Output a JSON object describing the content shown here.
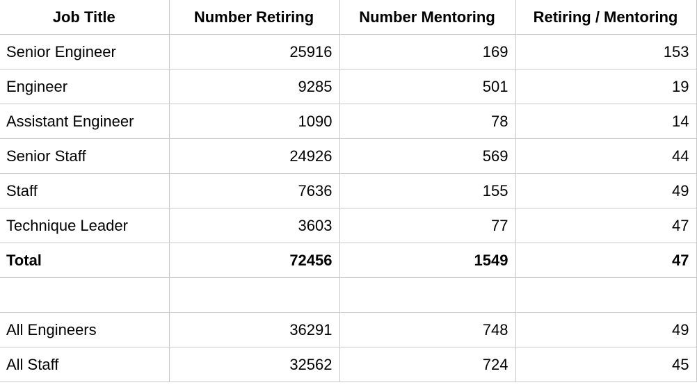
{
  "table": {
    "headers": [
      "Job Title",
      "Number Retiring",
      "Number Mentoring",
      "Retiring / Mentoring"
    ],
    "rows": [
      {
        "title": "Senior Engineer",
        "retiring": "25916",
        "mentoring": "169",
        "ratio": "153"
      },
      {
        "title": "Engineer",
        "retiring": "9285",
        "mentoring": "501",
        "ratio": "19"
      },
      {
        "title": "Assistant Engineer",
        "retiring": "1090",
        "mentoring": "78",
        "ratio": "14"
      },
      {
        "title": "Senior Staff",
        "retiring": "24926",
        "mentoring": "569",
        "ratio": "44"
      },
      {
        "title": "Staff",
        "retiring": "7636",
        "mentoring": "155",
        "ratio": "49"
      },
      {
        "title": "Technique Leader",
        "retiring": "3603",
        "mentoring": "77",
        "ratio": "47"
      }
    ],
    "total": {
      "title": "Total",
      "retiring": "72456",
      "mentoring": "1549",
      "ratio": "47"
    },
    "summary_rows": [
      {
        "title": "All Engineers",
        "retiring": "36291",
        "mentoring": "748",
        "ratio": "49"
      },
      {
        "title": "All Staff",
        "retiring": "32562",
        "mentoring": "724",
        "ratio": "45"
      }
    ]
  }
}
